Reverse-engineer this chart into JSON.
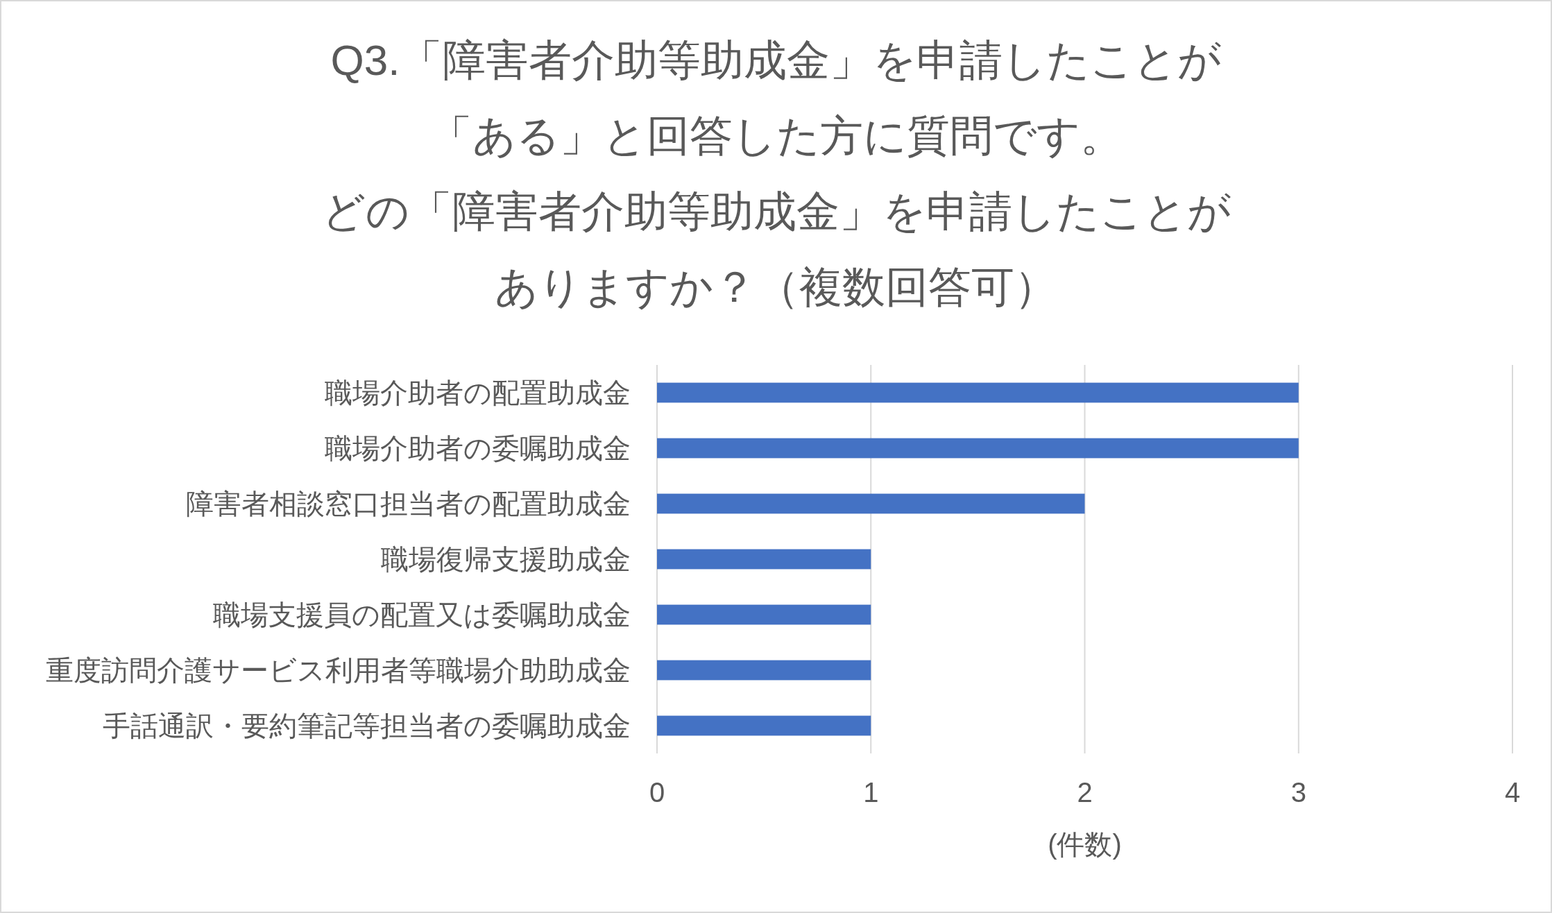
{
  "chart_data": {
    "type": "bar",
    "orientation": "horizontal",
    "title": "Q3.「障害者介助等助成金」を申請したことが「ある」と回答した方に質問です。どの「障害者介助等助成金」を申請したことがありますか？（複数回答可）",
    "xlabel": "(件数)",
    "categories": [
      "職場介助者の配置助成金",
      "職場介助者の委嘱助成金",
      "障害者相談窓口担当者の配置助成金",
      "職場復帰支援助成金",
      "職場支援員の配置又は委嘱助成金",
      "重度訪問介護サービス利用者等職場介助助成金",
      "手話通訳・要約筆記等担当者の委嘱助成金"
    ],
    "values": [
      3,
      3,
      2,
      1,
      1,
      1,
      1
    ],
    "color": "#4472c4",
    "xlim": [
      0,
      4
    ],
    "xticks": [
      0,
      1,
      2,
      3,
      4
    ],
    "grid": "x"
  }
}
